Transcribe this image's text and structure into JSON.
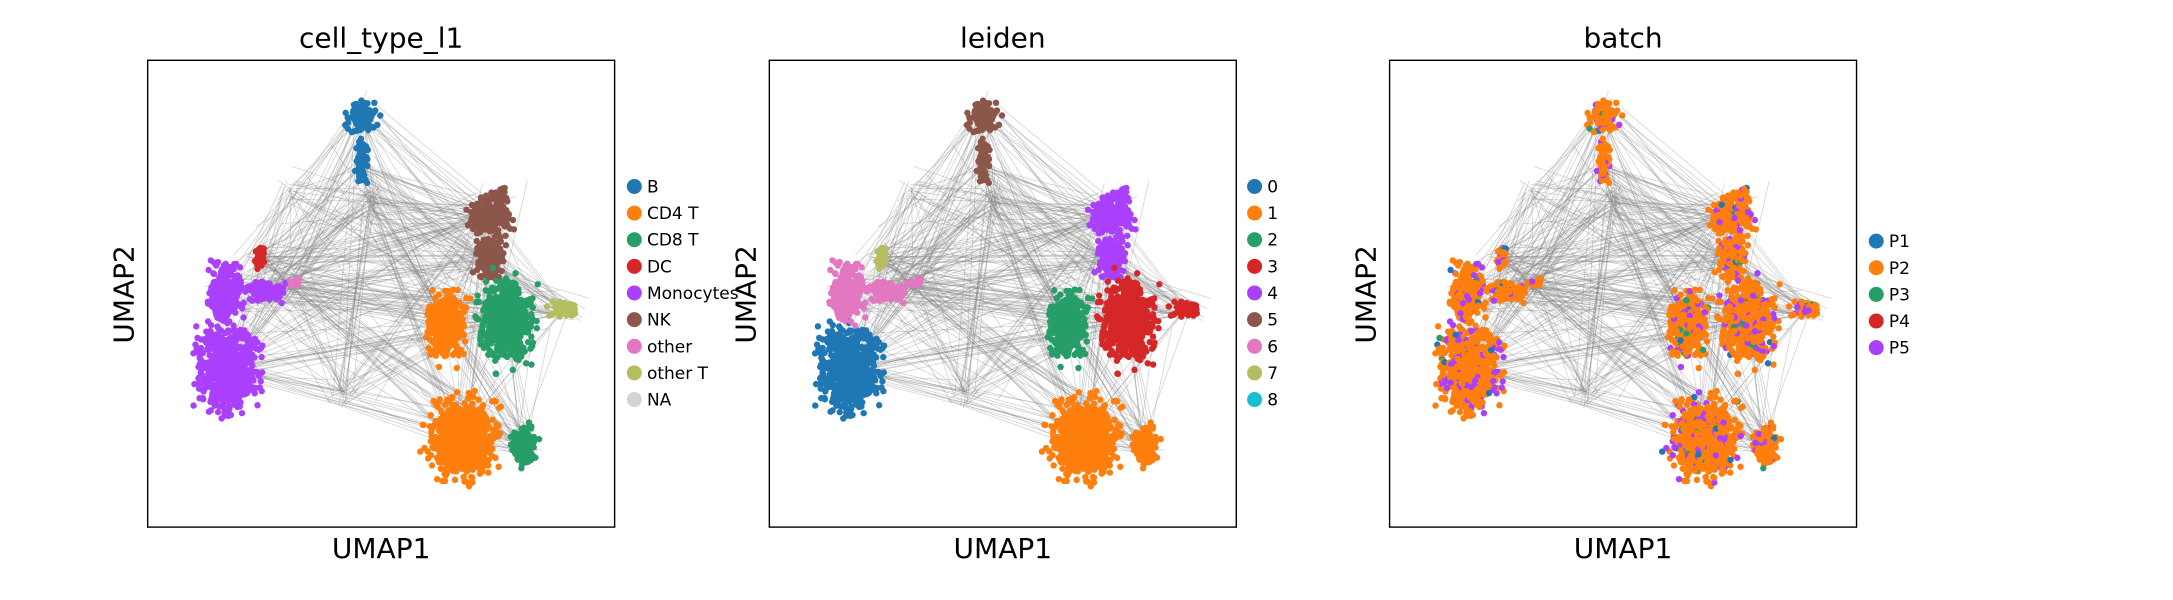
{
  "figure": {
    "panels": [
      {
        "title": "cell_type_l1",
        "xlabel": "UMAP1",
        "ylabel": "UMAP2",
        "legend": {
          "placement": "right",
          "items": [
            {
              "label": "B",
              "color": "#1f77b4"
            },
            {
              "label": "CD4 T",
              "color": "#ff7f0e"
            },
            {
              "label": "CD8 T",
              "color": "#279e68"
            },
            {
              "label": "DC",
              "color": "#d62728"
            },
            {
              "label": "Monocytes",
              "color": "#aa40fc"
            },
            {
              "label": "NK",
              "color": "#8c564b"
            },
            {
              "label": "other",
              "color": "#e377c2"
            },
            {
              "label": "other T",
              "color": "#b5bd61"
            },
            {
              "label": "NA",
              "color": "#d3d3d3"
            }
          ]
        }
      },
      {
        "title": "leiden",
        "xlabel": "UMAP1",
        "ylabel": "UMAP2",
        "legend": {
          "placement": "right",
          "items": [
            {
              "label": "0",
              "color": "#1f77b4"
            },
            {
              "label": "1",
              "color": "#ff7f0e"
            },
            {
              "label": "2",
              "color": "#279e68"
            },
            {
              "label": "3",
              "color": "#d62728"
            },
            {
              "label": "4",
              "color": "#aa40fc"
            },
            {
              "label": "5",
              "color": "#8c564b"
            },
            {
              "label": "6",
              "color": "#e377c2"
            },
            {
              "label": "7",
              "color": "#b5bd61"
            },
            {
              "label": "8",
              "color": "#17becf"
            }
          ]
        }
      },
      {
        "title": "batch",
        "xlabel": "UMAP1",
        "ylabel": "UMAP2",
        "legend": {
          "placement": "right",
          "items": [
            {
              "label": "P1",
              "color": "#1f77b4"
            },
            {
              "label": "P2",
              "color": "#ff7f0e"
            },
            {
              "label": "P3",
              "color": "#279e68"
            },
            {
              "label": "P4",
              "color": "#d62728"
            },
            {
              "label": "P5",
              "color": "#aa40fc"
            }
          ]
        }
      }
    ]
  },
  "chart_data": [
    {
      "type": "scatter",
      "title": "cell_type_l1",
      "xlabel": "UMAP1",
      "ylabel": "UMAP2",
      "grid": false,
      "ticks": false,
      "legend_placement": "right",
      "edges_color": "#808080",
      "series": [
        {
          "name": "B",
          "color": "#1f77b4"
        },
        {
          "name": "CD4 T",
          "color": "#ff7f0e"
        },
        {
          "name": "CD8 T",
          "color": "#279e68"
        },
        {
          "name": "DC",
          "color": "#d62728"
        },
        {
          "name": "Monocytes",
          "color": "#aa40fc"
        },
        {
          "name": "NK",
          "color": "#8c564b"
        },
        {
          "name": "other",
          "color": "#e377c2"
        },
        {
          "name": "other T",
          "color": "#b5bd61"
        },
        {
          "name": "NA",
          "color": "#d3d3d3"
        }
      ]
    },
    {
      "type": "scatter",
      "title": "leiden",
      "xlabel": "UMAP1",
      "ylabel": "UMAP2",
      "grid": false,
      "ticks": false,
      "legend_placement": "right",
      "edges_color": "#808080",
      "series": [
        {
          "name": "0",
          "color": "#1f77b4"
        },
        {
          "name": "1",
          "color": "#ff7f0e"
        },
        {
          "name": "2",
          "color": "#279e68"
        },
        {
          "name": "3",
          "color": "#d62728"
        },
        {
          "name": "4",
          "color": "#aa40fc"
        },
        {
          "name": "5",
          "color": "#8c564b"
        },
        {
          "name": "6",
          "color": "#e377c2"
        },
        {
          "name": "7",
          "color": "#b5bd61"
        },
        {
          "name": "8",
          "color": "#17becf"
        }
      ]
    },
    {
      "type": "scatter",
      "title": "batch",
      "xlabel": "UMAP1",
      "ylabel": "UMAP2",
      "grid": false,
      "ticks": false,
      "legend_placement": "right",
      "edges_color": "#808080",
      "series": [
        {
          "name": "P1",
          "color": "#1f77b4"
        },
        {
          "name": "P2",
          "color": "#ff7f0e"
        },
        {
          "name": "P3",
          "color": "#279e68"
        },
        {
          "name": "P4",
          "color": "#d62728"
        },
        {
          "name": "P5",
          "color": "#aa40fc"
        }
      ]
    }
  ]
}
